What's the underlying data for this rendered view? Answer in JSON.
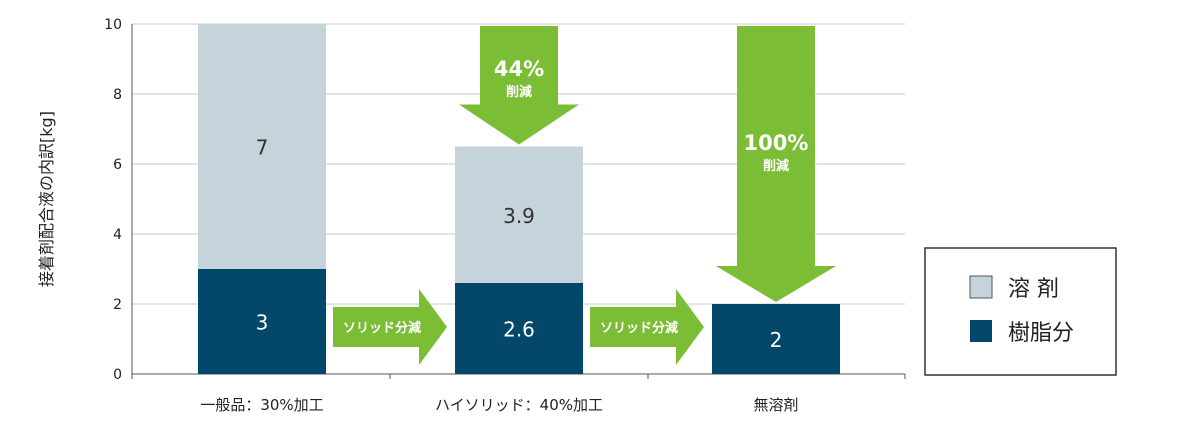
{
  "colors": {
    "solvent": "#c5d3da",
    "resin": "#03486a",
    "arrow": "#7cbd36",
    "grid": "#c8c8c8",
    "axis": "#555555"
  },
  "chart_data": {
    "type": "bar",
    "stacked": true,
    "ylabel": "接着剤配合液の内訳[kg]",
    "ylim": [
      0,
      10
    ],
    "yticks": [
      0,
      2,
      4,
      6,
      8,
      10
    ],
    "grid": true,
    "legend_position": "right",
    "categories": [
      "一般品：30%加工",
      "ハイソリッド：40%加工",
      "無溶剤"
    ],
    "series": [
      {
        "name": "樹脂分",
        "values": [
          3,
          2.6,
          2
        ],
        "labels": [
          "3",
          "2.6",
          "2"
        ]
      },
      {
        "name": "溶 剤",
        "values": [
          7,
          3.9,
          0
        ],
        "labels": [
          "7",
          "3.9",
          ""
        ]
      }
    ],
    "annotations": {
      "reduction_arrows": [
        {
          "category_index": 1,
          "percent": "44%",
          "text": "削減"
        },
        {
          "category_index": 2,
          "percent": "100%",
          "text": "削減"
        }
      ],
      "transition_arrows": [
        {
          "from": 0,
          "to": 1,
          "text": "ソリッド分減"
        },
        {
          "from": 1,
          "to": 2,
          "text": "ソリッド分減"
        }
      ]
    }
  },
  "legend": [
    {
      "label": "溶 剤",
      "color_key": "solvent"
    },
    {
      "label": "樹脂分",
      "color_key": "resin"
    }
  ]
}
